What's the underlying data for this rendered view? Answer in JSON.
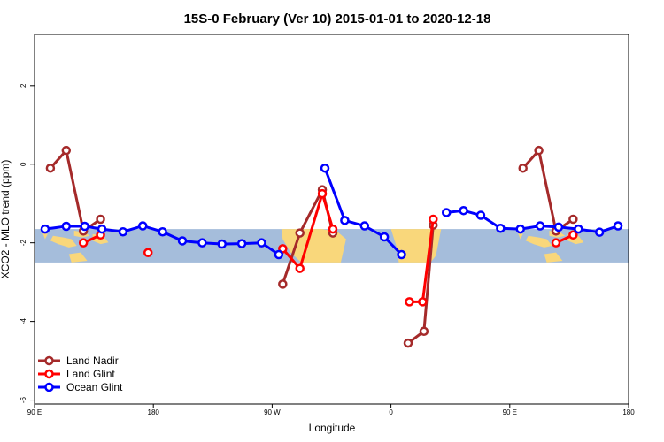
{
  "chart_data": {
    "type": "line",
    "title": "15S-0 February (Ver 10)   2015-01-01 to 2020-12-18",
    "xlabel": "Longitude",
    "ylabel": "XCO2 - MLO trend (ppm)",
    "xlim": [
      -90,
      360
    ],
    "ylim": [
      -6.1,
      3.3
    ],
    "x_ticks": [
      {
        "value": -90,
        "label": "90 E"
      },
      {
        "value": 0,
        "label": "180"
      },
      {
        "value": 90,
        "label": "90 W"
      },
      {
        "value": 180,
        "label": "0"
      },
      {
        "value": 270,
        "label": "90 E"
      },
      {
        "value": 360,
        "label": "180"
      }
    ],
    "y_ticks": [
      {
        "value": 2,
        "label": "2"
      },
      {
        "value": 0,
        "label": "0"
      },
      {
        "value": -2,
        "label": "-2"
      },
      {
        "value": -4,
        "label": "-4"
      },
      {
        "value": -6,
        "label": "-6"
      }
    ],
    "map_band": {
      "ymin": -2.5,
      "ymax": -1.65,
      "ocean_color": "#a5bddb",
      "land_color": "#f9d77b"
    },
    "legend_position": "bottom-left",
    "series": [
      {
        "name": "Land Nadir",
        "color": "#a52a2a",
        "segments": [
          [
            [
              -78,
              -0.1
            ],
            [
              -66,
              0.35
            ],
            [
              -53,
              -1.7
            ],
            [
              -40,
              -1.4
            ]
          ],
          [
            [
              98,
              -3.05
            ],
            [
              111,
              -1.75
            ],
            [
              128,
              -0.65
            ],
            [
              136,
              -1.75
            ]
          ],
          [
            [
              193,
              -4.55
            ],
            [
              205,
              -4.25
            ],
            [
              212,
              -1.55
            ]
          ],
          [
            [
              280,
              -0.1
            ],
            [
              292,
              0.35
            ],
            [
              305,
              -1.7
            ],
            [
              318,
              -1.4
            ]
          ]
        ]
      },
      {
        "name": "Land Glint",
        "color": "#ff0000",
        "segments": [
          [
            [
              -53,
              -2.0
            ],
            [
              -40,
              -1.8
            ]
          ],
          [
            [
              -4,
              -2.25
            ]
          ],
          [
            [
              98,
              -2.15
            ],
            [
              111,
              -2.65
            ],
            [
              128,
              -0.75
            ],
            [
              136,
              -1.65
            ]
          ],
          [
            [
              194,
              -3.5
            ],
            [
              204,
              -3.5
            ],
            [
              212,
              -1.4
            ]
          ],
          [
            [
              305,
              -2.0
            ],
            [
              318,
              -1.8
            ]
          ]
        ]
      },
      {
        "name": "Ocean Glint",
        "color": "#0000ff",
        "segments": [
          [
            [
              -82,
              -1.65
            ],
            [
              -66,
              -1.58
            ],
            [
              -52,
              -1.58
            ],
            [
              -39,
              -1.65
            ],
            [
              -23,
              -1.72
            ],
            [
              -8,
              -1.57
            ],
            [
              7,
              -1.72
            ],
            [
              22,
              -1.95
            ],
            [
              37,
              -2.0
            ],
            [
              52,
              -2.03
            ],
            [
              67,
              -2.02
            ],
            [
              82,
              -2.0
            ],
            [
              95,
              -2.3
            ]
          ],
          [
            [
              130,
              -0.1
            ],
            [
              145,
              -1.43
            ],
            [
              160,
              -1.57
            ],
            [
              175,
              -1.85
            ],
            [
              188,
              -2.3
            ]
          ],
          [
            [
              222,
              -1.23
            ],
            [
              235,
              -1.18
            ],
            [
              248,
              -1.3
            ],
            [
              263,
              -1.63
            ],
            [
              278,
              -1.65
            ],
            [
              293,
              -1.57
            ],
            [
              307,
              -1.6
            ],
            [
              322,
              -1.65
            ],
            [
              338,
              -1.73
            ],
            [
              352,
              -1.57
            ]
          ]
        ]
      }
    ]
  }
}
